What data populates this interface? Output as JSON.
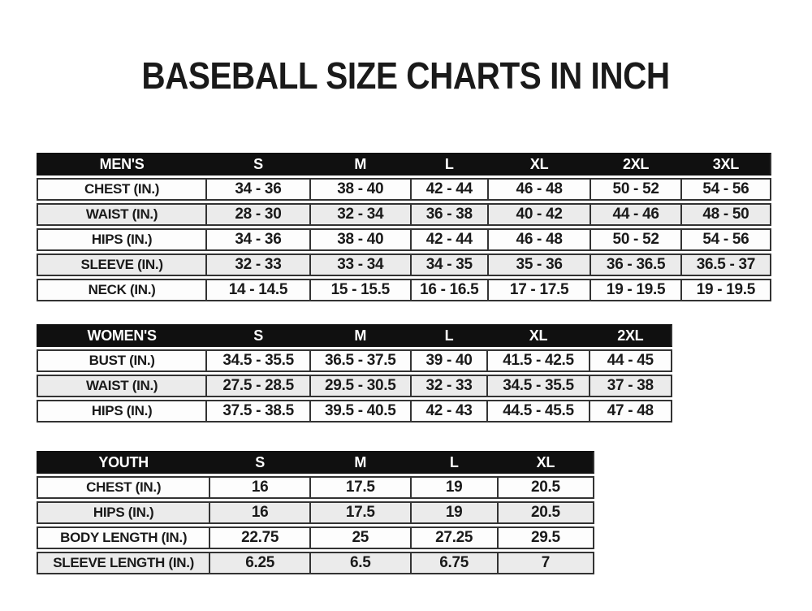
{
  "title": "BASEBALL SIZE CHARTS IN INCH",
  "colors": {
    "page_bg": "#ffffff",
    "header_bg": "#101010",
    "header_text": "#ffffff",
    "row_bg": "#fdfdfd",
    "row_alt_bg": "#ebebeb",
    "border": "#333333",
    "text": "#1a1a1a"
  },
  "tables": {
    "mens": {
      "header": [
        "MEN'S",
        "S",
        "M",
        "L",
        "XL",
        "2XL",
        "3XL"
      ],
      "rows": [
        [
          "CHEST (IN.)",
          "34 - 36",
          "38 - 40",
          "42 - 44",
          "46 - 48",
          "50 - 52",
          "54 - 56"
        ],
        [
          "WAIST (IN.)",
          "28 - 30",
          "32 - 34",
          "36 - 38",
          "40 - 42",
          "44 - 46",
          "48 - 50"
        ],
        [
          "HIPS (IN.)",
          "34 - 36",
          "38 - 40",
          "42 - 44",
          "46 - 48",
          "50 - 52",
          "54 - 56"
        ],
        [
          "SLEEVE (IN.)",
          "32 - 33",
          "33 - 34",
          "34 - 35",
          "35 - 36",
          "36 - 36.5",
          "36.5 - 37"
        ],
        [
          "NECK (IN.)",
          "14 - 14.5",
          "15 - 15.5",
          "16 - 16.5",
          "17 - 17.5",
          "19 - 19.5",
          "19 - 19.5"
        ]
      ]
    },
    "womens": {
      "header": [
        "WOMEN'S",
        "S",
        "M",
        "L",
        "XL",
        "2XL"
      ],
      "rows": [
        [
          "BUST (IN.)",
          "34.5 - 35.5",
          "36.5 - 37.5",
          "39 - 40",
          "41.5 - 42.5",
          "44 - 45"
        ],
        [
          "WAIST (IN.)",
          "27.5 - 28.5",
          "29.5 - 30.5",
          "32 - 33",
          "34.5 - 35.5",
          "37 - 38"
        ],
        [
          "HIPS (IN.)",
          "37.5 - 38.5",
          "39.5 - 40.5",
          "42 - 43",
          "44.5 - 45.5",
          "47 - 48"
        ]
      ]
    },
    "youth": {
      "header": [
        "YOUTH",
        "S",
        "M",
        "L",
        "XL"
      ],
      "rows": [
        [
          "CHEST (IN.)",
          "16",
          "17.5",
          "19",
          "20.5"
        ],
        [
          "HIPS (IN.)",
          "16",
          "17.5",
          "19",
          "20.5"
        ],
        [
          "BODY LENGTH (IN.)",
          "22.75",
          "25",
          "27.25",
          "29.5"
        ],
        [
          "SLEEVE LENGTH (IN.)",
          "6.25",
          "6.5",
          "6.75",
          "7"
        ]
      ]
    }
  }
}
